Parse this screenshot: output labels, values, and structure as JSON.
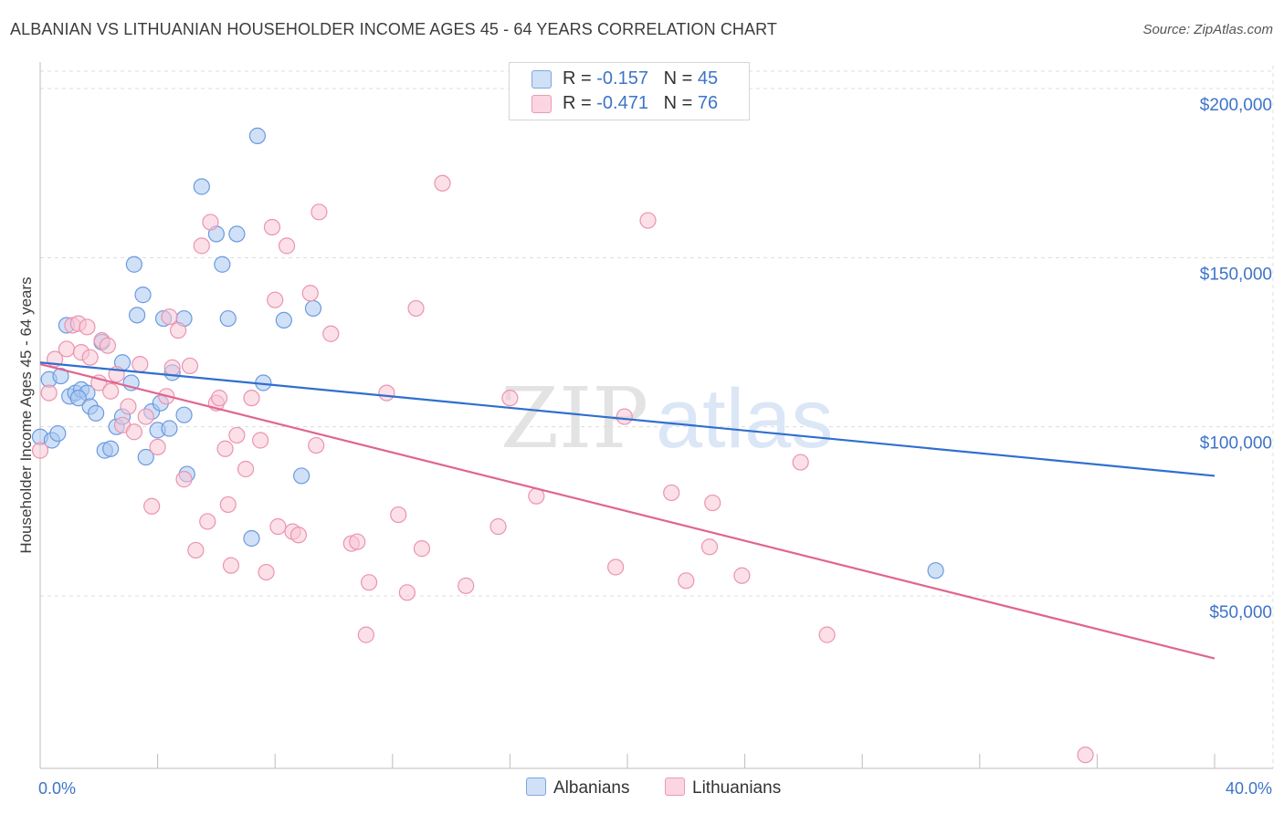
{
  "title": "ALBANIAN VS LITHUANIAN HOUSEHOLDER INCOME AGES 45 - 64 YEARS CORRELATION CHART",
  "source": "Source: ZipAtlas.com",
  "watermark": {
    "zip": "ZIP",
    "atlas": "atlas"
  },
  "legend_top": {
    "rows": [
      {
        "r_label": "R = ",
        "r_value": "-0.157",
        "n_label": "N = ",
        "n_value": "45",
        "color": "#aac8f0"
      },
      {
        "r_label": "R = ",
        "r_value": "-0.471",
        "n_label": "N = ",
        "n_value": "76",
        "color": "#f5b8cc"
      }
    ]
  },
  "legend_bottom": [
    {
      "label": "Albanians",
      "color": "#aac8f0"
    },
    {
      "label": "Lithuanians",
      "color": "#f5b8cc"
    }
  ],
  "colors": {
    "albanian_fill": "#aac8f0",
    "albanian_stroke": "#6b9ae0",
    "albanian_line": "#2f6fce",
    "lithuanian_fill": "#f8c6d6",
    "lithuanian_stroke": "#ec93b0",
    "lithuanian_line": "#e0658f",
    "axis_label": "#3d74c8",
    "grid": "#dcdcdc"
  },
  "chart_data": {
    "type": "scatter",
    "title": "ALBANIAN VS LITHUANIAN HOUSEHOLDER INCOME AGES 45 - 64 YEARS CORRELATION CHART",
    "xlabel": "",
    "ylabel": "Householder Income Ages 45 - 64 years",
    "xlim": [
      0,
      40
    ],
    "ylim": [
      0,
      210000
    ],
    "x_tick_labels": [
      "0.0%",
      "40.0%"
    ],
    "y_ticks": [
      50000,
      100000,
      150000,
      200000
    ],
    "y_tick_labels": [
      "$50,000",
      "$100,000",
      "$150,000",
      "$200,000"
    ],
    "grid": true,
    "legend_position": "top-center",
    "series": [
      {
        "name": "Albanians",
        "r": -0.157,
        "n": 45,
        "trend": {
          "x": [
            0,
            40
          ],
          "y": [
            119000,
            85500
          ]
        },
        "points": [
          {
            "x": 0.0,
            "y": 97000
          },
          {
            "x": 0.3,
            "y": 114000
          },
          {
            "x": 0.4,
            "y": 96000
          },
          {
            "x": 0.7,
            "y": 115000
          },
          {
            "x": 0.9,
            "y": 130000
          },
          {
            "x": 1.0,
            "y": 109000
          },
          {
            "x": 1.2,
            "y": 110000
          },
          {
            "x": 1.4,
            "y": 111000
          },
          {
            "x": 1.6,
            "y": 110000
          },
          {
            "x": 1.7,
            "y": 106000
          },
          {
            "x": 1.9,
            "y": 104000
          },
          {
            "x": 2.1,
            "y": 125000
          },
          {
            "x": 2.2,
            "y": 93000
          },
          {
            "x": 2.4,
            "y": 93500
          },
          {
            "x": 2.6,
            "y": 100000
          },
          {
            "x": 2.8,
            "y": 103000
          },
          {
            "x": 2.8,
            "y": 119000
          },
          {
            "x": 3.1,
            "y": 113000
          },
          {
            "x": 3.2,
            "y": 148000
          },
          {
            "x": 3.3,
            "y": 133000
          },
          {
            "x": 3.5,
            "y": 139000
          },
          {
            "x": 3.6,
            "y": 91000
          },
          {
            "x": 3.8,
            "y": 104500
          },
          {
            "x": 4.0,
            "y": 99000
          },
          {
            "x": 4.1,
            "y": 107000
          },
          {
            "x": 4.2,
            "y": 132000
          },
          {
            "x": 4.4,
            "y": 99500
          },
          {
            "x": 4.5,
            "y": 116000
          },
          {
            "x": 4.9,
            "y": 132000
          },
          {
            "x": 4.9,
            "y": 103500
          },
          {
            "x": 5.0,
            "y": 86000
          },
          {
            "x": 5.5,
            "y": 171000
          },
          {
            "x": 6.0,
            "y": 157000
          },
          {
            "x": 6.2,
            "y": 148000
          },
          {
            "x": 6.4,
            "y": 132000
          },
          {
            "x": 6.7,
            "y": 157000
          },
          {
            "x": 7.2,
            "y": 67000
          },
          {
            "x": 7.4,
            "y": 186000
          },
          {
            "x": 7.6,
            "y": 113000
          },
          {
            "x": 8.3,
            "y": 131500
          },
          {
            "x": 8.9,
            "y": 85500
          },
          {
            "x": 9.3,
            "y": 135000
          },
          {
            "x": 30.5,
            "y": 57500
          },
          {
            "x": 0.6,
            "y": 98000
          },
          {
            "x": 1.3,
            "y": 108500
          }
        ]
      },
      {
        "name": "Lithuanians",
        "r": -0.471,
        "n": 76,
        "trend": {
          "x": [
            0,
            40
          ],
          "y": [
            118500,
            31500
          ]
        },
        "points": [
          {
            "x": 0.0,
            "y": 93000
          },
          {
            "x": 0.3,
            "y": 110000
          },
          {
            "x": 0.5,
            "y": 120000
          },
          {
            "x": 0.9,
            "y": 123000
          },
          {
            "x": 1.1,
            "y": 130000
          },
          {
            "x": 1.3,
            "y": 130500
          },
          {
            "x": 1.4,
            "y": 122000
          },
          {
            "x": 1.7,
            "y": 120500
          },
          {
            "x": 2.0,
            "y": 113000
          },
          {
            "x": 2.1,
            "y": 125500
          },
          {
            "x": 2.3,
            "y": 124000
          },
          {
            "x": 2.4,
            "y": 110500
          },
          {
            "x": 2.6,
            "y": 115500
          },
          {
            "x": 2.8,
            "y": 100500
          },
          {
            "x": 3.0,
            "y": 106000
          },
          {
            "x": 3.2,
            "y": 98500
          },
          {
            "x": 3.4,
            "y": 118500
          },
          {
            "x": 3.6,
            "y": 103000
          },
          {
            "x": 3.8,
            "y": 76500
          },
          {
            "x": 4.0,
            "y": 94000
          },
          {
            "x": 4.3,
            "y": 109000
          },
          {
            "x": 4.4,
            "y": 132500
          },
          {
            "x": 4.5,
            "y": 117500
          },
          {
            "x": 4.7,
            "y": 128500
          },
          {
            "x": 4.9,
            "y": 84500
          },
          {
            "x": 5.1,
            "y": 118000
          },
          {
            "x": 5.3,
            "y": 63500
          },
          {
            "x": 5.5,
            "y": 153500
          },
          {
            "x": 5.7,
            "y": 72000
          },
          {
            "x": 5.8,
            "y": 160500
          },
          {
            "x": 6.0,
            "y": 107000
          },
          {
            "x": 6.1,
            "y": 108500
          },
          {
            "x": 6.3,
            "y": 93500
          },
          {
            "x": 6.4,
            "y": 77000
          },
          {
            "x": 6.5,
            "y": 59000
          },
          {
            "x": 6.7,
            "y": 97500
          },
          {
            "x": 7.0,
            "y": 87500
          },
          {
            "x": 7.2,
            "y": 108500
          },
          {
            "x": 7.5,
            "y": 96000
          },
          {
            "x": 7.7,
            "y": 57000
          },
          {
            "x": 7.9,
            "y": 159000
          },
          {
            "x": 8.0,
            "y": 137500
          },
          {
            "x": 8.1,
            "y": 70500
          },
          {
            "x": 8.4,
            "y": 153500
          },
          {
            "x": 8.6,
            "y": 69000
          },
          {
            "x": 8.8,
            "y": 68000
          },
          {
            "x": 9.2,
            "y": 139500
          },
          {
            "x": 9.4,
            "y": 94500
          },
          {
            "x": 9.5,
            "y": 163500
          },
          {
            "x": 9.9,
            "y": 127500
          },
          {
            "x": 10.6,
            "y": 65500
          },
          {
            "x": 10.8,
            "y": 66000
          },
          {
            "x": 11.1,
            "y": 38500
          },
          {
            "x": 11.2,
            "y": 54000
          },
          {
            "x": 11.8,
            "y": 110000
          },
          {
            "x": 12.2,
            "y": 74000
          },
          {
            "x": 12.5,
            "y": 51000
          },
          {
            "x": 12.8,
            "y": 135000
          },
          {
            "x": 13.0,
            "y": 64000
          },
          {
            "x": 13.7,
            "y": 172000
          },
          {
            "x": 14.5,
            "y": 53000
          },
          {
            "x": 15.6,
            "y": 70500
          },
          {
            "x": 16.0,
            "y": 108500
          },
          {
            "x": 16.9,
            "y": 79500
          },
          {
            "x": 19.6,
            "y": 58500
          },
          {
            "x": 19.9,
            "y": 103000
          },
          {
            "x": 20.7,
            "y": 161000
          },
          {
            "x": 21.5,
            "y": 80500
          },
          {
            "x": 22.0,
            "y": 54500
          },
          {
            "x": 22.8,
            "y": 64500
          },
          {
            "x": 22.9,
            "y": 77500
          },
          {
            "x": 23.9,
            "y": 56000
          },
          {
            "x": 25.9,
            "y": 89500
          },
          {
            "x": 26.8,
            "y": 38500
          },
          {
            "x": 35.6,
            "y": 3000
          },
          {
            "x": 1.6,
            "y": 129500
          }
        ]
      }
    ]
  }
}
